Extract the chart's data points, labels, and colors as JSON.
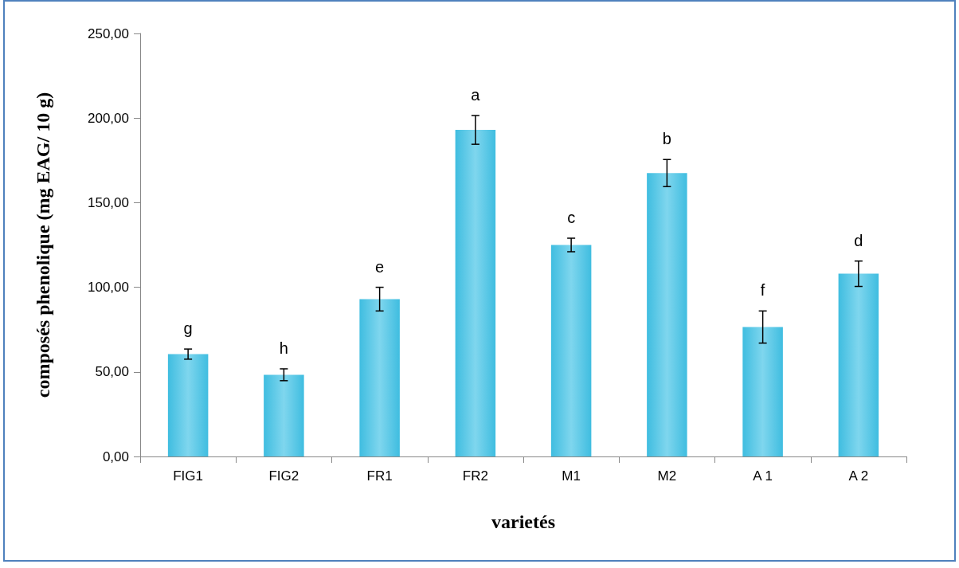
{
  "chart_data": {
    "type": "bar",
    "xlabel": "varietés",
    "ylabel": "composés phenolique (mg EAG/ 10 g)",
    "categories": [
      "FIG1",
      "FIG2",
      "FR1",
      "FR2",
      "M1",
      "M2",
      "A 1",
      "A 2"
    ],
    "values": [
      60.5,
      48.3,
      93,
      193,
      125,
      167.5,
      76.5,
      108
    ],
    "errors": [
      3,
      3.5,
      7,
      8.5,
      4,
      8,
      9.5,
      7.5
    ],
    "color": "#3fbde0",
    "ylim": [
      0,
      250
    ],
    "yticks": [
      {
        "value": 0,
        "label": "0,00"
      },
      {
        "value": 50,
        "label": "50,00"
      },
      {
        "value": 100,
        "label": "100,00"
      },
      {
        "value": 150,
        "label": "150,00"
      },
      {
        "value": 200,
        "label": "200,00"
      },
      {
        "value": 250,
        "label": "250,00"
      }
    ],
    "grid": false,
    "annotations": [
      {
        "text": "g",
        "x": "FIG1",
        "y": 63.5
      },
      {
        "text": "h",
        "x": "FIG2",
        "y": 51.8
      },
      {
        "text": "e",
        "x": "FR1",
        "y": 100
      },
      {
        "text": "a",
        "x": "FR2",
        "y": 201.5
      },
      {
        "text": "c",
        "x": "M1",
        "y": 129
      },
      {
        "text": "b",
        "x": "M2",
        "y": 175.5
      },
      {
        "text": "f",
        "x": "A 1",
        "y": 86
      },
      {
        "text": "d",
        "x": "A 2",
        "y": 115.5
      }
    ]
  }
}
